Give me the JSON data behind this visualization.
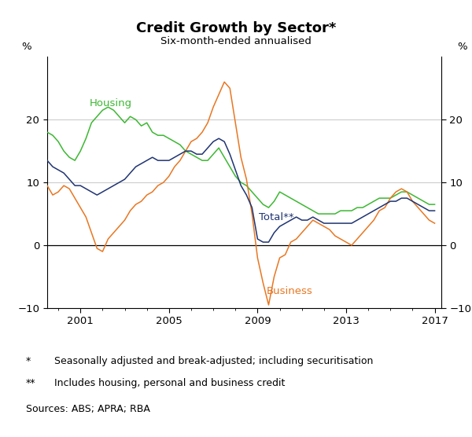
{
  "title": "Credit Growth by Sector*",
  "subtitle": "Six-month-ended annualised",
  "ylabel_left": "%",
  "ylabel_right": "%",
  "xlim": [
    1999.5,
    2017.3
  ],
  "ylim": [
    -10,
    30
  ],
  "yticks": [
    -10,
    0,
    10,
    20
  ],
  "xticks": [
    2001,
    2005,
    2009,
    2013,
    2017
  ],
  "colors": {
    "housing": "#3cb832",
    "business": "#e87722",
    "total": "#1f3472"
  },
  "label_housing": "Housing",
  "label_business": "Business",
  "label_total": "Total**",
  "footnote1_sym": "*",
  "footnote1_txt": "Seasonally adjusted and break-adjusted; including securitisation",
  "footnote2_sym": "**",
  "footnote2_txt": "Includes housing, personal and business credit",
  "footnote3": "Sources: ABS; APRA; RBA",
  "housing": [
    [
      1999.5,
      18.0
    ],
    [
      1999.75,
      17.5
    ],
    [
      2000.0,
      16.5
    ],
    [
      2000.25,
      15.0
    ],
    [
      2000.5,
      14.0
    ],
    [
      2000.75,
      13.5
    ],
    [
      2001.0,
      15.0
    ],
    [
      2001.25,
      17.0
    ],
    [
      2001.5,
      19.5
    ],
    [
      2001.75,
      20.5
    ],
    [
      2002.0,
      21.5
    ],
    [
      2002.25,
      22.0
    ],
    [
      2002.5,
      21.5
    ],
    [
      2002.75,
      20.5
    ],
    [
      2003.0,
      19.5
    ],
    [
      2003.25,
      20.5
    ],
    [
      2003.5,
      20.0
    ],
    [
      2003.75,
      19.0
    ],
    [
      2004.0,
      19.5
    ],
    [
      2004.25,
      18.0
    ],
    [
      2004.5,
      17.5
    ],
    [
      2004.75,
      17.5
    ],
    [
      2005.0,
      17.0
    ],
    [
      2005.25,
      16.5
    ],
    [
      2005.5,
      16.0
    ],
    [
      2005.75,
      15.0
    ],
    [
      2006.0,
      14.5
    ],
    [
      2006.25,
      14.0
    ],
    [
      2006.5,
      13.5
    ],
    [
      2006.75,
      13.5
    ],
    [
      2007.0,
      14.5
    ],
    [
      2007.25,
      15.5
    ],
    [
      2007.5,
      14.0
    ],
    [
      2007.75,
      12.5
    ],
    [
      2008.0,
      11.0
    ],
    [
      2008.25,
      10.0
    ],
    [
      2008.5,
      9.5
    ],
    [
      2008.75,
      8.5
    ],
    [
      2009.0,
      7.5
    ],
    [
      2009.25,
      6.5
    ],
    [
      2009.5,
      6.0
    ],
    [
      2009.75,
      7.0
    ],
    [
      2010.0,
      8.5
    ],
    [
      2010.25,
      8.0
    ],
    [
      2010.5,
      7.5
    ],
    [
      2010.75,
      7.0
    ],
    [
      2011.0,
      6.5
    ],
    [
      2011.25,
      6.0
    ],
    [
      2011.5,
      5.5
    ],
    [
      2011.75,
      5.0
    ],
    [
      2012.0,
      5.0
    ],
    [
      2012.25,
      5.0
    ],
    [
      2012.5,
      5.0
    ],
    [
      2012.75,
      5.5
    ],
    [
      2013.0,
      5.5
    ],
    [
      2013.25,
      5.5
    ],
    [
      2013.5,
      6.0
    ],
    [
      2013.75,
      6.0
    ],
    [
      2014.0,
      6.5
    ],
    [
      2014.25,
      7.0
    ],
    [
      2014.5,
      7.5
    ],
    [
      2014.75,
      7.5
    ],
    [
      2015.0,
      7.5
    ],
    [
      2015.25,
      8.0
    ],
    [
      2015.5,
      8.5
    ],
    [
      2015.75,
      8.5
    ],
    [
      2016.0,
      8.0
    ],
    [
      2016.25,
      7.5
    ],
    [
      2016.5,
      7.0
    ],
    [
      2016.75,
      6.5
    ],
    [
      2017.0,
      6.5
    ]
  ],
  "business": [
    [
      1999.5,
      9.5
    ],
    [
      1999.75,
      8.0
    ],
    [
      2000.0,
      8.5
    ],
    [
      2000.25,
      9.5
    ],
    [
      2000.5,
      9.0
    ],
    [
      2000.75,
      7.5
    ],
    [
      2001.0,
      6.0
    ],
    [
      2001.25,
      4.5
    ],
    [
      2001.5,
      2.0
    ],
    [
      2001.75,
      -0.5
    ],
    [
      2002.0,
      -1.0
    ],
    [
      2002.25,
      1.0
    ],
    [
      2002.5,
      2.0
    ],
    [
      2002.75,
      3.0
    ],
    [
      2003.0,
      4.0
    ],
    [
      2003.25,
      5.5
    ],
    [
      2003.5,
      6.5
    ],
    [
      2003.75,
      7.0
    ],
    [
      2004.0,
      8.0
    ],
    [
      2004.25,
      8.5
    ],
    [
      2004.5,
      9.5
    ],
    [
      2004.75,
      10.0
    ],
    [
      2005.0,
      11.0
    ],
    [
      2005.25,
      12.5
    ],
    [
      2005.5,
      13.5
    ],
    [
      2005.75,
      15.0
    ],
    [
      2006.0,
      16.5
    ],
    [
      2006.25,
      17.0
    ],
    [
      2006.5,
      18.0
    ],
    [
      2006.75,
      19.5
    ],
    [
      2007.0,
      22.0
    ],
    [
      2007.25,
      24.0
    ],
    [
      2007.5,
      26.0
    ],
    [
      2007.75,
      25.0
    ],
    [
      2008.0,
      19.5
    ],
    [
      2008.25,
      14.0
    ],
    [
      2008.5,
      10.5
    ],
    [
      2008.75,
      5.0
    ],
    [
      2009.0,
      -2.0
    ],
    [
      2009.25,
      -6.0
    ],
    [
      2009.5,
      -9.5
    ],
    [
      2009.75,
      -5.0
    ],
    [
      2010.0,
      -2.0
    ],
    [
      2010.25,
      -1.5
    ],
    [
      2010.5,
      0.5
    ],
    [
      2010.75,
      1.0
    ],
    [
      2011.0,
      2.0
    ],
    [
      2011.25,
      3.0
    ],
    [
      2011.5,
      4.0
    ],
    [
      2011.75,
      3.5
    ],
    [
      2012.0,
      3.0
    ],
    [
      2012.25,
      2.5
    ],
    [
      2012.5,
      1.5
    ],
    [
      2012.75,
      1.0
    ],
    [
      2013.0,
      0.5
    ],
    [
      2013.25,
      0.0
    ],
    [
      2013.5,
      1.0
    ],
    [
      2013.75,
      2.0
    ],
    [
      2014.0,
      3.0
    ],
    [
      2014.25,
      4.0
    ],
    [
      2014.5,
      5.5
    ],
    [
      2014.75,
      6.0
    ],
    [
      2015.0,
      7.5
    ],
    [
      2015.25,
      8.5
    ],
    [
      2015.5,
      9.0
    ],
    [
      2015.75,
      8.5
    ],
    [
      2016.0,
      7.0
    ],
    [
      2016.25,
      6.0
    ],
    [
      2016.5,
      5.0
    ],
    [
      2016.75,
      4.0
    ],
    [
      2017.0,
      3.5
    ]
  ],
  "total": [
    [
      1999.5,
      13.5
    ],
    [
      1999.75,
      12.5
    ],
    [
      2000.0,
      12.0
    ],
    [
      2000.25,
      11.5
    ],
    [
      2000.5,
      10.5
    ],
    [
      2000.75,
      9.5
    ],
    [
      2001.0,
      9.5
    ],
    [
      2001.25,
      9.0
    ],
    [
      2001.5,
      8.5
    ],
    [
      2001.75,
      8.0
    ],
    [
      2002.0,
      8.5
    ],
    [
      2002.25,
      9.0
    ],
    [
      2002.5,
      9.5
    ],
    [
      2002.75,
      10.0
    ],
    [
      2003.0,
      10.5
    ],
    [
      2003.25,
      11.5
    ],
    [
      2003.5,
      12.5
    ],
    [
      2003.75,
      13.0
    ],
    [
      2004.0,
      13.5
    ],
    [
      2004.25,
      14.0
    ],
    [
      2004.5,
      13.5
    ],
    [
      2004.75,
      13.5
    ],
    [
      2005.0,
      13.5
    ],
    [
      2005.25,
      14.0
    ],
    [
      2005.5,
      14.5
    ],
    [
      2005.75,
      15.0
    ],
    [
      2006.0,
      15.0
    ],
    [
      2006.25,
      14.5
    ],
    [
      2006.5,
      14.5
    ],
    [
      2006.75,
      15.5
    ],
    [
      2007.0,
      16.5
    ],
    [
      2007.25,
      17.0
    ],
    [
      2007.5,
      16.5
    ],
    [
      2007.75,
      14.5
    ],
    [
      2008.0,
      12.0
    ],
    [
      2008.25,
      9.5
    ],
    [
      2008.5,
      8.0
    ],
    [
      2008.75,
      6.0
    ],
    [
      2009.0,
      1.0
    ],
    [
      2009.25,
      0.5
    ],
    [
      2009.5,
      0.5
    ],
    [
      2009.75,
      2.0
    ],
    [
      2010.0,
      3.0
    ],
    [
      2010.25,
      3.5
    ],
    [
      2010.5,
      4.0
    ],
    [
      2010.75,
      4.5
    ],
    [
      2011.0,
      4.0
    ],
    [
      2011.25,
      4.0
    ],
    [
      2011.5,
      4.5
    ],
    [
      2011.75,
      4.0
    ],
    [
      2012.0,
      3.5
    ],
    [
      2012.25,
      3.5
    ],
    [
      2012.5,
      3.5
    ],
    [
      2012.75,
      3.5
    ],
    [
      2013.0,
      3.5
    ],
    [
      2013.25,
      3.5
    ],
    [
      2013.5,
      4.0
    ],
    [
      2013.75,
      4.5
    ],
    [
      2014.0,
      5.0
    ],
    [
      2014.25,
      5.5
    ],
    [
      2014.5,
      6.0
    ],
    [
      2014.75,
      6.5
    ],
    [
      2015.0,
      7.0
    ],
    [
      2015.25,
      7.0
    ],
    [
      2015.5,
      7.5
    ],
    [
      2015.75,
      7.5
    ],
    [
      2016.0,
      7.0
    ],
    [
      2016.25,
      6.5
    ],
    [
      2016.5,
      6.0
    ],
    [
      2016.75,
      5.5
    ],
    [
      2017.0,
      5.5
    ]
  ]
}
